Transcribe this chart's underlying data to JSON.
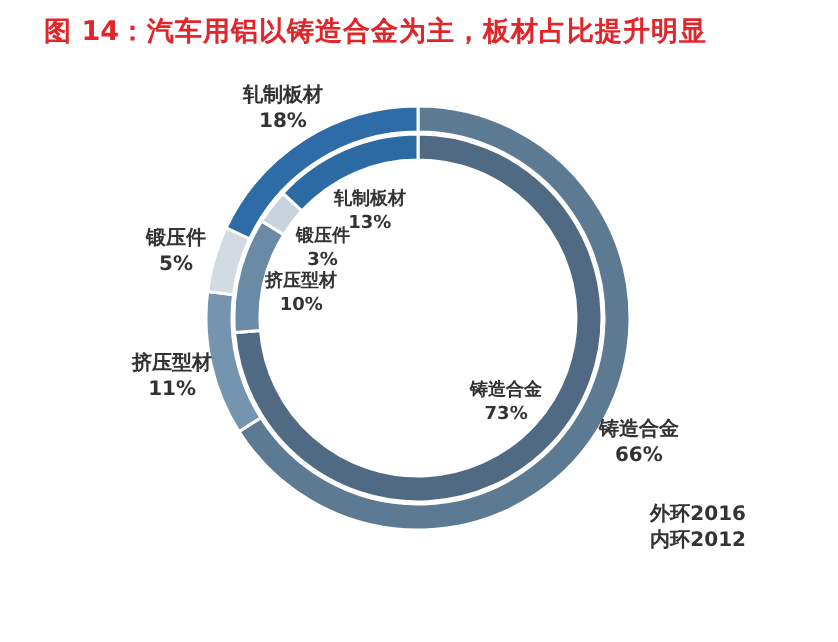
{
  "chart_data": [
    {
      "type": "donut",
      "title": "图 14：汽车用铝以铸造合金为主，板材占比提升明显",
      "categories": [
        "铸造合金",
        "挤压型材",
        "锻压件",
        "轧制板材"
      ],
      "values": [
        66,
        11,
        5,
        18
      ],
      "colors": [
        "#5d7a93",
        "#7594b0",
        "#d2dae2",
        "#2d6ca6"
      ],
      "value_labels": [
        "66%",
        "11%",
        "5%",
        "18%"
      ],
      "annotations": [
        "外环2016",
        "内环2012"
      ]
    },
    {
      "type": "donut",
      "categories": [
        "铸造合金",
        "挤压型材",
        "锻压件",
        "轧制板材"
      ],
      "values": [
        73,
        10,
        3,
        13
      ],
      "colors": [
        "#4f6a82",
        "#6a8aa6",
        "#c9d3dd",
        "#2c6aa3"
      ],
      "value_labels": [
        "73%",
        "10%",
        "3%",
        "13%"
      ]
    }
  ]
}
